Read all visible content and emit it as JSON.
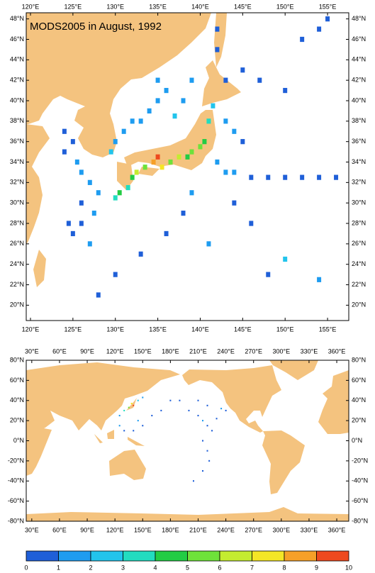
{
  "title": "MODS2005 in August, 1992",
  "regional_map": {
    "xlim": [
      119.5,
      157.5
    ],
    "ylim": [
      18.5,
      48.6
    ],
    "xticks": [
      {
        "value": 120,
        "label": "120°E"
      },
      {
        "value": 125,
        "label": "125°E"
      },
      {
        "value": 130,
        "label": "130°E"
      },
      {
        "value": 135,
        "label": "135°E"
      },
      {
        "value": 140,
        "label": "140°E"
      },
      {
        "value": 145,
        "label": "145°E"
      },
      {
        "value": 150,
        "label": "150°E"
      },
      {
        "value": 155,
        "label": "155°E"
      }
    ],
    "yticks": [
      {
        "value": 20,
        "label": "20°N"
      },
      {
        "value": 22,
        "label": "22°N"
      },
      {
        "value": 24,
        "label": "24°N"
      },
      {
        "value": 26,
        "label": "26°N"
      },
      {
        "value": 28,
        "label": "28°N"
      },
      {
        "value": 30,
        "label": "30°N"
      },
      {
        "value": 32,
        "label": "32°N"
      },
      {
        "value": 34,
        "label": "34°N"
      },
      {
        "value": 36,
        "label": "36°N"
      },
      {
        "value": 38,
        "label": "38°N"
      },
      {
        "value": 40,
        "label": "40°N"
      },
      {
        "value": 42,
        "label": "42°N"
      },
      {
        "value": 44,
        "label": "44°N"
      },
      {
        "value": 46,
        "label": "46°N"
      },
      {
        "value": 48,
        "label": "48°N"
      }
    ],
    "cells": [
      [
        139,
        35,
        5
      ],
      [
        138.5,
        34.5,
        4
      ],
      [
        137.5,
        34.5,
        6
      ],
      [
        136.5,
        34,
        5
      ],
      [
        135.5,
        33.5,
        7
      ],
      [
        135,
        34.5,
        9
      ],
      [
        134.5,
        34,
        8
      ],
      [
        133.5,
        33.5,
        5
      ],
      [
        132.5,
        33,
        6
      ],
      [
        132,
        32.5,
        4
      ],
      [
        131.5,
        31.5,
        3
      ],
      [
        130.5,
        31,
        4
      ],
      [
        130,
        30.5,
        3
      ],
      [
        141,
        38,
        3
      ],
      [
        141.5,
        39.5,
        2
      ],
      [
        140.5,
        36,
        4
      ],
      [
        140,
        35.5,
        5
      ],
      [
        134,
        39,
        1
      ],
      [
        135,
        40,
        1
      ],
      [
        136,
        41,
        1
      ],
      [
        133,
        38,
        1
      ],
      [
        137,
        38.5,
        2
      ],
      [
        138,
        40,
        1
      ],
      [
        131,
        37,
        1
      ],
      [
        132,
        38,
        1
      ],
      [
        130,
        36,
        1
      ],
      [
        129.5,
        35,
        2
      ],
      [
        139,
        42,
        1
      ],
      [
        135,
        42,
        1
      ],
      [
        124,
        37,
        0.5
      ],
      [
        125,
        36,
        0.5
      ],
      [
        124,
        35,
        0.5
      ],
      [
        125.5,
        34,
        1
      ],
      [
        126,
        33,
        1.5
      ],
      [
        127,
        32,
        1
      ],
      [
        128,
        31,
        1.5
      ],
      [
        126,
        30,
        0.5
      ],
      [
        127.5,
        29,
        1
      ],
      [
        126,
        28,
        0.5
      ],
      [
        125,
        27,
        0.5
      ],
      [
        127,
        26,
        1
      ],
      [
        124.5,
        28,
        0.5
      ],
      [
        143,
        38,
        1
      ],
      [
        144,
        37,
        1
      ],
      [
        145,
        36,
        0.5
      ],
      [
        142,
        34,
        1
      ],
      [
        143,
        33,
        1
      ],
      [
        144,
        33,
        1
      ],
      [
        146,
        32.5,
        0.5
      ],
      [
        148,
        32.5,
        0.5
      ],
      [
        150,
        32.5,
        0.5
      ],
      [
        152,
        32.5,
        0.5
      ],
      [
        154,
        32.5,
        0.5
      ],
      [
        156,
        32.5,
        0.5
      ],
      [
        143,
        42,
        0.5
      ],
      [
        145,
        43,
        0.5
      ],
      [
        147,
        42,
        0.5
      ],
      [
        150,
        41,
        0.5
      ],
      [
        139,
        31,
        1
      ],
      [
        138,
        29,
        0.5
      ],
      [
        136,
        27,
        0.5
      ],
      [
        133,
        25,
        0.5
      ],
      [
        130,
        23,
        0.5
      ],
      [
        128,
        21,
        0.5
      ],
      [
        141,
        26,
        1
      ],
      [
        150,
        24.5,
        2.5
      ],
      [
        148,
        23,
        0.5
      ],
      [
        154,
        22.5,
        1.5
      ],
      [
        146,
        28,
        0.5
      ],
      [
        144,
        30,
        0.5
      ],
      [
        152,
        46,
        0.5
      ],
      [
        154,
        47,
        0.5
      ],
      [
        155,
        48,
        0.5
      ],
      [
        142,
        45,
        0.5
      ],
      [
        142,
        47,
        0.5
      ]
    ]
  },
  "global_map": {
    "xlim": [
      24,
      373
    ],
    "ylim": [
      -80,
      80
    ],
    "xticks": [
      {
        "value": 30,
        "label": "30°E"
      },
      {
        "value": 60,
        "label": "60°E"
      },
      {
        "value": 90,
        "label": "90°E"
      },
      {
        "value": 120,
        "label": "120°E"
      },
      {
        "value": 150,
        "label": "150°E"
      },
      {
        "value": 180,
        "label": "180°E"
      },
      {
        "value": 210,
        "label": "210°E"
      },
      {
        "value": 240,
        "label": "240°E"
      },
      {
        "value": 270,
        "label": "270°E"
      },
      {
        "value": 300,
        "label": "300°E"
      },
      {
        "value": 330,
        "label": "330°E"
      },
      {
        "value": 360,
        "label": "360°E"
      }
    ],
    "yticks": [
      {
        "value": 80,
        "label": "80°N"
      },
      {
        "value": 60,
        "label": "60°N"
      },
      {
        "value": 40,
        "label": "40°N"
      },
      {
        "value": 20,
        "label": "20°N"
      },
      {
        "value": 0,
        "label": "0°N"
      },
      {
        "value": -20,
        "label": "-20°N"
      },
      {
        "value": -40,
        "label": "-40°N"
      },
      {
        "value": -60,
        "label": "-60°N"
      },
      {
        "value": -80,
        "label": "-80°N"
      }
    ],
    "cells": [
      [
        200,
        30,
        0.5
      ],
      [
        210,
        25,
        0.5
      ],
      [
        215,
        20,
        1
      ],
      [
        220,
        15,
        0.5
      ],
      [
        225,
        10,
        0.5
      ],
      [
        230,
        22,
        0.5
      ],
      [
        240,
        30,
        0.5
      ],
      [
        235,
        32,
        1
      ],
      [
        190,
        40,
        0.5
      ],
      [
        180,
        40,
        0.5
      ],
      [
        210,
        40,
        0.5
      ],
      [
        220,
        35,
        0.5
      ],
      [
        215,
        0,
        0.5
      ],
      [
        220,
        -10,
        0.5
      ],
      [
        222,
        -20,
        0.5
      ],
      [
        215,
        -30,
        0.5
      ],
      [
        205,
        -40,
        0.5
      ],
      [
        140,
        35,
        9
      ],
      [
        138,
        37,
        7
      ],
      [
        135,
        33,
        5
      ],
      [
        130,
        30,
        3
      ],
      [
        125,
        25,
        1
      ],
      [
        125,
        15,
        1
      ],
      [
        130,
        10,
        0.5
      ],
      [
        140,
        10,
        0.5
      ],
      [
        145,
        20,
        1
      ],
      [
        150,
        15,
        0.5
      ],
      [
        160,
        25,
        0.5
      ],
      [
        170,
        30,
        0.5
      ],
      [
        145,
        40,
        2
      ],
      [
        150,
        43,
        1
      ]
    ]
  },
  "colorbar": {
    "ticks": [
      0,
      1,
      2,
      3,
      4,
      5,
      6,
      7,
      8,
      9,
      10
    ],
    "colors": [
      "#1f5fd8",
      "#1e9cf0",
      "#22c4ec",
      "#22dcc0",
      "#22cc44",
      "#6ee23a",
      "#c4ec30",
      "#f4e626",
      "#f6a028",
      "#ee4a1e"
    ]
  }
}
